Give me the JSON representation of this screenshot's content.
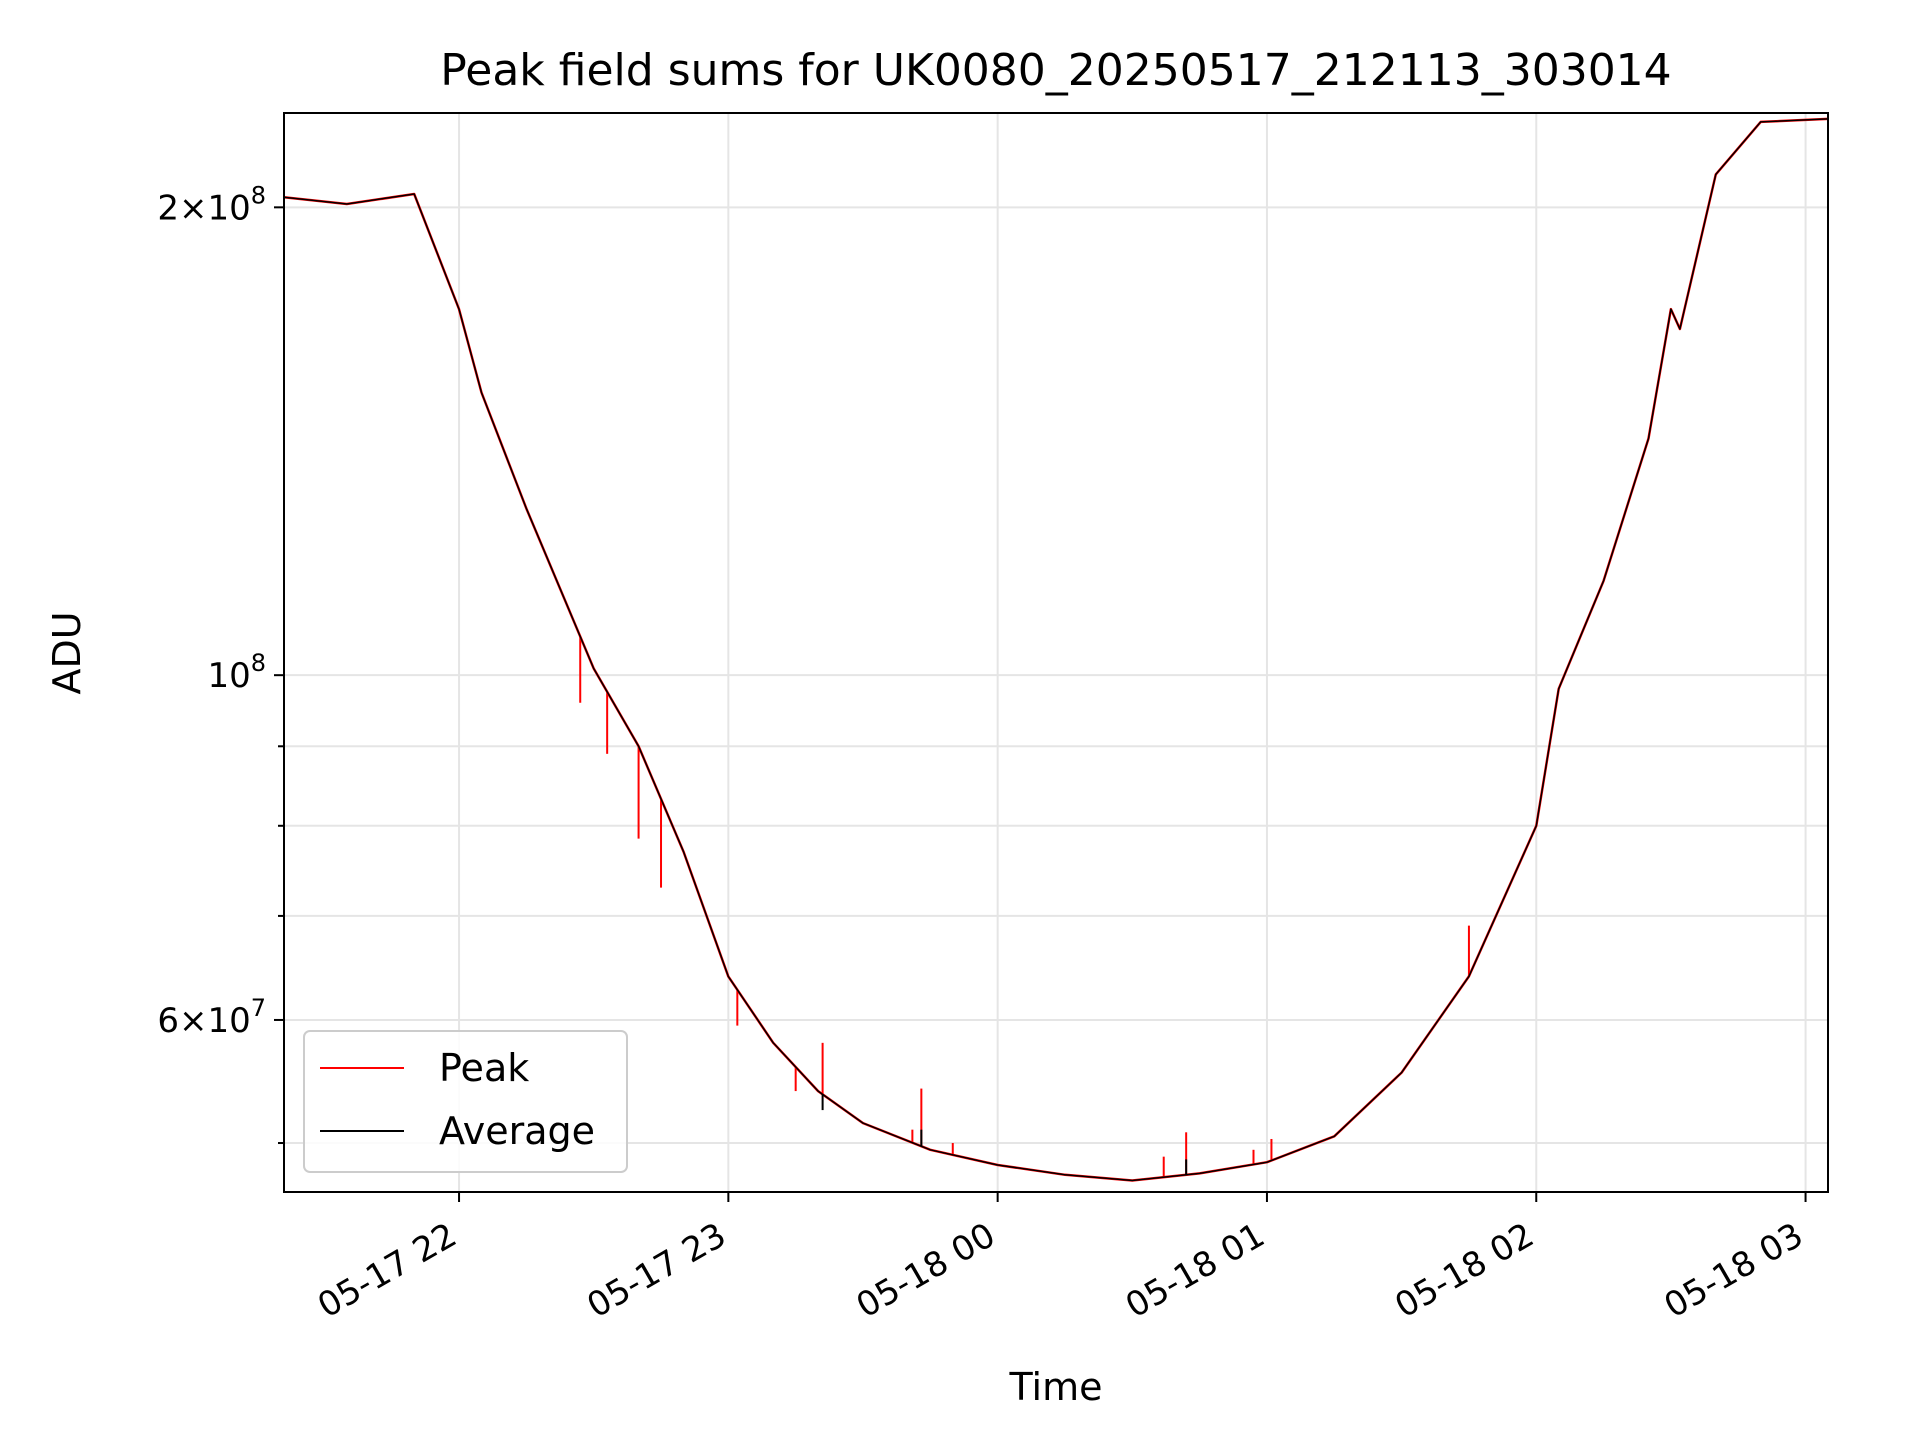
{
  "chart_data": {
    "type": "line",
    "title": "Peak field sums for UK0080_20250517_212113_303014",
    "xlabel": "Time",
    "ylabel": "ADU",
    "x_axis": {
      "kind": "datetime",
      "range": [
        "2025-05-17 21:21",
        "2025-05-18 03:05"
      ],
      "ticks": [
        "2025-05-17 22:00",
        "2025-05-17 23:00",
        "2025-05-18 00:00",
        "2025-05-18 01:00",
        "2025-05-18 02:00",
        "2025-05-18 03:00"
      ],
      "tick_labels": [
        "05-17 22",
        "05-17 23",
        "05-18 00",
        "05-18 01",
        "05-18 02",
        "05-18 03"
      ]
    },
    "y_axis": {
      "scale": "log",
      "range": [
        46500000,
        230000000
      ],
      "major_ticks": [
        {
          "value": 60000000,
          "mantissa": "6",
          "exponent": "7"
        },
        {
          "value": 100000000,
          "mantissa": "",
          "exponent": "8"
        },
        {
          "value": 200000000,
          "mantissa": "2",
          "exponent": "8"
        }
      ],
      "minor_ticks": [
        50000000,
        70000000,
        80000000,
        90000000
      ]
    },
    "grid": true,
    "legend": {
      "placement": "lower-left"
    },
    "series": [
      {
        "name": "Peak",
        "color": "#ff0000",
        "points": [
          [
            "2025-05-17 21:21",
            203000000
          ],
          [
            "2025-05-17 21:35",
            201000000
          ],
          [
            "2025-05-17 21:50",
            204000000
          ],
          [
            "2025-05-17 22:00",
            172000000
          ],
          [
            "2025-05-17 22:05",
            152000000
          ],
          [
            "2025-05-17 22:15",
            128000000
          ],
          [
            "2025-05-17 22:30",
            101000000
          ],
          [
            "2025-05-17 22:40",
            90000000
          ],
          [
            "2025-05-17 22:50",
            77000000
          ],
          [
            "2025-05-17 23:00",
            64000000
          ],
          [
            "2025-05-17 23:10",
            58000000
          ],
          [
            "2025-05-17 23:20",
            54000000
          ],
          [
            "2025-05-17 23:30",
            51500000
          ],
          [
            "2025-05-17 23:45",
            49500000
          ],
          [
            "2025-05-18 00:00",
            48400000
          ],
          [
            "2025-05-18 00:15",
            47700000
          ],
          [
            "2025-05-18 00:30",
            47300000
          ],
          [
            "2025-05-18 00:45",
            47800000
          ],
          [
            "2025-05-18 01:00",
            48600000
          ],
          [
            "2025-05-18 01:15",
            50500000
          ],
          [
            "2025-05-18 01:30",
            55500000
          ],
          [
            "2025-05-18 01:45",
            64000000
          ],
          [
            "2025-05-18 02:00",
            80000000
          ],
          [
            "2025-05-18 02:05",
            98000000
          ],
          [
            "2025-05-18 02:15",
            115000000
          ],
          [
            "2025-05-18 02:25",
            142000000
          ],
          [
            "2025-05-18 02:30",
            172000000
          ],
          [
            "2025-05-18 02:32",
            167000000
          ],
          [
            "2025-05-18 02:40",
            210000000
          ],
          [
            "2025-05-18 02:50",
            227000000
          ],
          [
            "2025-05-18 03:05",
            228000000
          ]
        ],
        "spikes": [
          [
            "2025-05-17 22:27",
            96000000
          ],
          [
            "2025-05-17 22:33",
            89000000
          ],
          [
            "2025-05-17 22:40",
            78500000
          ],
          [
            "2025-05-17 22:45",
            73000000
          ],
          [
            "2025-05-17 23:02",
            59500000
          ],
          [
            "2025-05-17 23:15",
            54000000
          ],
          [
            "2025-05-17 23:21",
            58000000
          ],
          [
            "2025-05-17 23:41",
            51000000
          ],
          [
            "2025-05-17 23:43",
            54200000
          ],
          [
            "2025-05-17 23:50",
            50000000
          ],
          [
            "2025-05-18 00:37",
            49000000
          ],
          [
            "2025-05-18 00:42",
            50800000
          ],
          [
            "2025-05-18 00:57",
            49500000
          ],
          [
            "2025-05-18 01:01",
            50300000
          ],
          [
            "2025-05-18 01:45",
            69000000
          ]
        ]
      },
      {
        "name": "Average",
        "color": "#000000",
        "points": [
          [
            "2025-05-17 21:21",
            203000000
          ],
          [
            "2025-05-17 21:35",
            201000000
          ],
          [
            "2025-05-17 21:50",
            204000000
          ],
          [
            "2025-05-17 22:00",
            172000000
          ],
          [
            "2025-05-17 22:05",
            152000000
          ],
          [
            "2025-05-17 22:15",
            128000000
          ],
          [
            "2025-05-17 22:30",
            101000000
          ],
          [
            "2025-05-17 22:40",
            90000000
          ],
          [
            "2025-05-17 22:50",
            77000000
          ],
          [
            "2025-05-17 23:00",
            64000000
          ],
          [
            "2025-05-17 23:10",
            58000000
          ],
          [
            "2025-05-17 23:20",
            54000000
          ],
          [
            "2025-05-17 23:30",
            51500000
          ],
          [
            "2025-05-17 23:45",
            49500000
          ],
          [
            "2025-05-18 00:00",
            48400000
          ],
          [
            "2025-05-18 00:15",
            47700000
          ],
          [
            "2025-05-18 00:30",
            47300000
          ],
          [
            "2025-05-18 00:45",
            47800000
          ],
          [
            "2025-05-18 01:00",
            48600000
          ],
          [
            "2025-05-18 01:15",
            50500000
          ],
          [
            "2025-05-18 01:30",
            55500000
          ],
          [
            "2025-05-18 01:45",
            64000000
          ],
          [
            "2025-05-18 02:00",
            80000000
          ],
          [
            "2025-05-18 02:05",
            98000000
          ],
          [
            "2025-05-18 02:15",
            115000000
          ],
          [
            "2025-05-18 02:25",
            142000000
          ],
          [
            "2025-05-18 02:30",
            172000000
          ],
          [
            "2025-05-18 02:32",
            167000000
          ],
          [
            "2025-05-18 02:40",
            210000000
          ],
          [
            "2025-05-18 02:50",
            227000000
          ],
          [
            "2025-05-18 03:05",
            228000000
          ]
        ],
        "spikes": [
          [
            "2025-05-17 23:21",
            52500000
          ],
          [
            "2025-05-17 23:43",
            51000000
          ],
          [
            "2025-05-18 00:42",
            48800000
          ]
        ]
      }
    ]
  }
}
